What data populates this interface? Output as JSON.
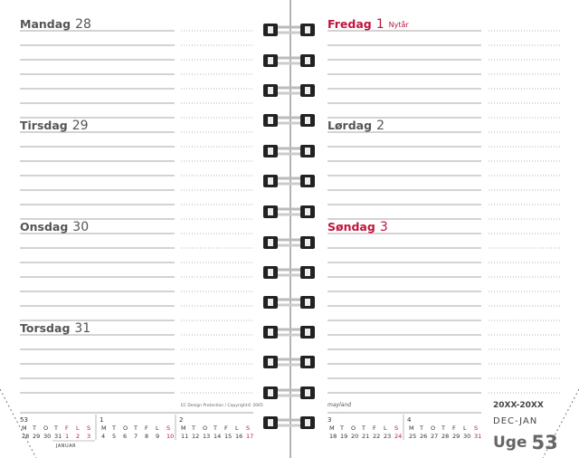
{
  "left_page": {
    "days": [
      {
        "name": "Mandag",
        "number": "28"
      },
      {
        "name": "Tirsdag",
        "number": "29"
      },
      {
        "name": "Onsdag",
        "number": "30"
      },
      {
        "name": "Torsdag",
        "number": "31"
      }
    ],
    "copyright": "EC Design Protection / Copyright© 2005"
  },
  "right_page": {
    "days": [
      {
        "name": "Fredag",
        "number": "1",
        "note": "Nytår",
        "holiday": true
      },
      {
        "name": "Lørdag",
        "number": "2"
      },
      {
        "name": "Søndag",
        "number": "3",
        "holiday": true
      }
    ],
    "brand": "mayland",
    "years": "20XX-20XX",
    "months": "DEC-JAN",
    "week_word": "Uge",
    "week_number": "53"
  },
  "mini_calendar": {
    "weekday_letters": [
      "M",
      "T",
      "O",
      "T",
      "F",
      "L",
      "S"
    ],
    "month_label": "JANUAR",
    "red_color": "#c0143c",
    "weeks": [
      {
        "week": "53",
        "dates": [
          "28",
          "29",
          "30",
          "31",
          "1",
          "2",
          "3"
        ],
        "red": [
          4,
          5,
          6
        ]
      },
      {
        "week": "1",
        "dates": [
          "4",
          "5",
          "6",
          "7",
          "8",
          "9",
          "10"
        ],
        "red": [
          6
        ]
      },
      {
        "week": "2",
        "dates": [
          "11",
          "12",
          "13",
          "14",
          "15",
          "16",
          "17"
        ],
        "red": [
          6
        ]
      },
      {
        "week": "3",
        "dates": [
          "18",
          "19",
          "20",
          "21",
          "22",
          "23",
          "24"
        ],
        "red": [
          6
        ]
      },
      {
        "week": "4",
        "dates": [
          "25",
          "26",
          "27",
          "28",
          "29",
          "30",
          "31"
        ],
        "red": [
          6
        ]
      }
    ]
  }
}
